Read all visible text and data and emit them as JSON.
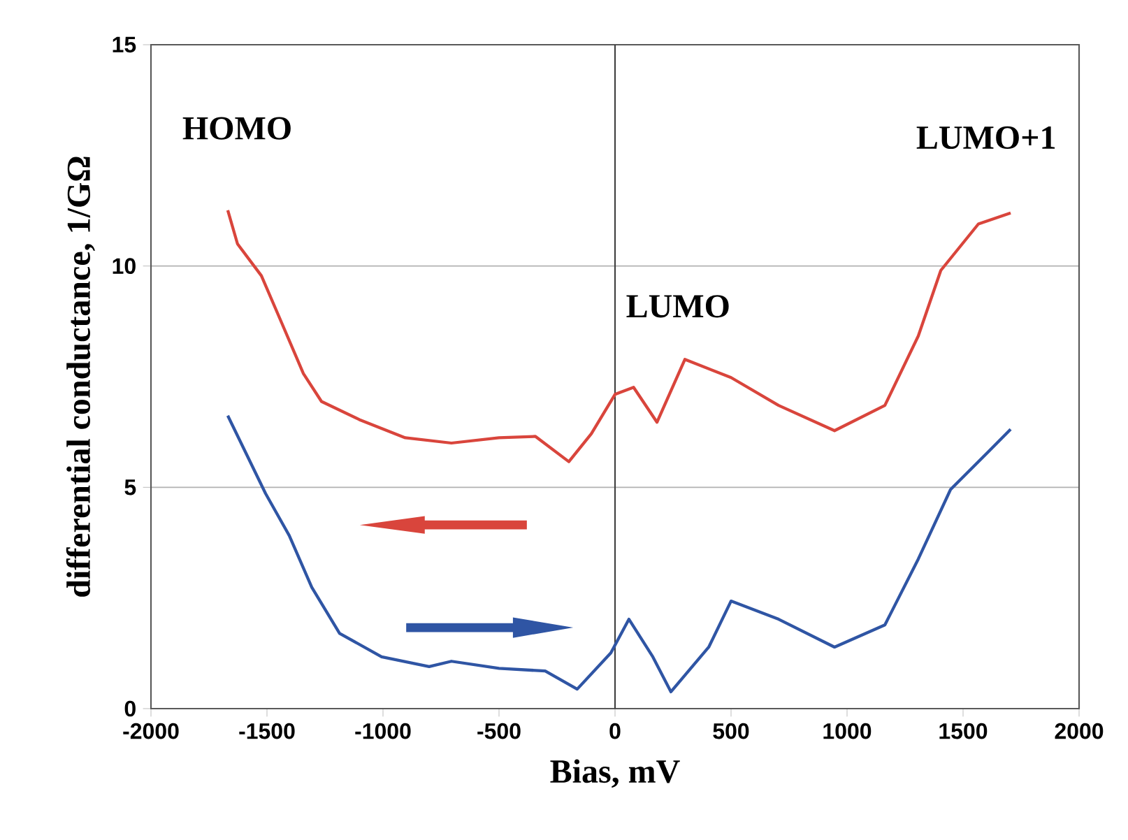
{
  "chart_data": {
    "type": "line",
    "xlabel": "Bias, mV",
    "ylabel": "differential conductance, 1/GΩ",
    "xlim": [
      -2000,
      2000
    ],
    "xticks": [
      -2000,
      -1500,
      -1000,
      -500,
      0,
      500,
      1000,
      1500,
      2000
    ],
    "ylim": [
      0,
      15
    ],
    "yticks": [
      0,
      5,
      10,
      15
    ],
    "grid": "y",
    "ref_lines": [
      {
        "axis": "x",
        "value": 0,
        "color": "#404040"
      }
    ],
    "annotations": [
      "HOMO",
      "LUMO",
      "LUMO+1"
    ],
    "series": [
      {
        "color": "#d9453c",
        "x": [
          -1669,
          -1627,
          -1524,
          -1446,
          -1343,
          -1265,
          -1102,
          -904,
          -705,
          -500,
          -343,
          -199,
          -102,
          0,
          80,
          181,
          301,
          500,
          705,
          946,
          1163,
          1307,
          1404,
          1566,
          1705
        ],
        "values": [
          11.26,
          10.5,
          9.78,
          8.83,
          7.57,
          6.94,
          6.53,
          6.12,
          6.0,
          6.12,
          6.15,
          5.58,
          6.21,
          7.1,
          7.26,
          6.47,
          7.89,
          7.48,
          6.85,
          6.28,
          6.85,
          8.42,
          9.9,
          10.95,
          11.2
        ]
      },
      {
        "color": "#2f55a4",
        "x": [
          -1669,
          -1506,
          -1404,
          -1307,
          -1187,
          -1006,
          -801,
          -705,
          -500,
          -301,
          -163,
          -18,
          60,
          163,
          241,
          404,
          500,
          705,
          946,
          1163,
          1307,
          1446,
          1608,
          1705
        ],
        "values": [
          6.62,
          4.86,
          3.91,
          2.74,
          1.7,
          1.17,
          0.95,
          1.07,
          0.91,
          0.85,
          0.44,
          1.26,
          2.02,
          1.17,
          0.38,
          1.39,
          2.43,
          2.02,
          1.39,
          1.89,
          3.38,
          4.95,
          5.8,
          6.31
        ]
      }
    ]
  }
}
